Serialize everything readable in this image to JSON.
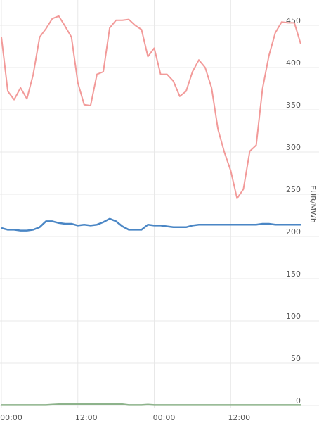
{
  "chart_data": {
    "type": "line",
    "ylabel": "EUR/MWh",
    "ylim": [
      0,
      480
    ],
    "yticks": [
      "0",
      "50",
      "100",
      "150",
      "200",
      "250",
      "300",
      "350",
      "400",
      "450"
    ],
    "xticks": [
      "00:00",
      "12:00",
      "00:00",
      "12:00"
    ],
    "grid": true,
    "series": [
      {
        "color": "#f29a99",
        "x": [
          0,
          1,
          2,
          3,
          4,
          5,
          6,
          7,
          8,
          9,
          10,
          11,
          12,
          13,
          14,
          15,
          16,
          17,
          18,
          19,
          20,
          21,
          22,
          23,
          24,
          25,
          26,
          27,
          28,
          29,
          30,
          31,
          32,
          33,
          34,
          35,
          36,
          37,
          38,
          39,
          40,
          41,
          42,
          43,
          44,
          45,
          46,
          47
        ],
        "values": [
          436,
          372,
          362,
          376,
          363,
          392,
          436,
          446,
          458,
          461,
          449,
          436,
          382,
          356,
          355,
          392,
          395,
          447,
          456,
          456,
          457,
          450,
          445,
          413,
          423,
          392,
          392,
          384,
          366,
          372,
          395,
          409,
          400,
          376,
          327,
          300,
          278,
          245,
          256,
          301,
          308,
          375,
          414,
          441,
          454,
          453,
          453,
          428
        ]
      },
      {
        "color": "#4a86c5",
        "x": [
          0,
          1,
          2,
          3,
          4,
          5,
          6,
          7,
          8,
          9,
          10,
          11,
          12,
          13,
          14,
          15,
          16,
          17,
          18,
          19,
          20,
          21,
          22,
          23,
          24,
          25,
          26,
          27,
          28,
          29,
          30,
          31,
          32,
          33,
          34,
          35,
          36,
          37,
          38,
          39,
          40,
          41,
          42,
          43,
          44,
          45,
          46,
          47
        ],
        "values": [
          210,
          208,
          208,
          207,
          207,
          208,
          211,
          218,
          218,
          216,
          215,
          215,
          213,
          214,
          213,
          214,
          217,
          221,
          218,
          212,
          208,
          208,
          208,
          214,
          213,
          213,
          212,
          211,
          211,
          211,
          213,
          214,
          214,
          214,
          214,
          214,
          214,
          214,
          214,
          214,
          214,
          215,
          215,
          214,
          214,
          214,
          214,
          214
        ]
      },
      {
        "color": "#8db38b",
        "x": [
          0,
          1,
          2,
          3,
          4,
          5,
          6,
          7,
          8,
          9,
          10,
          11,
          12,
          13,
          14,
          15,
          16,
          17,
          18,
          19,
          20,
          21,
          22,
          23,
          24,
          25,
          26,
          27,
          28,
          29,
          30,
          31,
          32,
          33,
          34,
          35,
          36,
          37,
          38,
          39,
          40,
          41,
          42,
          43,
          44,
          45,
          46,
          47
        ],
        "values": [
          0.5,
          0.5,
          0.5,
          0.5,
          0.5,
          0.5,
          0.5,
          0.5,
          1,
          1.5,
          1.5,
          1.5,
          1.5,
          1.5,
          1.5,
          1.5,
          1.5,
          1.5,
          1.5,
          1.5,
          0.5,
          0.5,
          0.5,
          1,
          0.5,
          0.5,
          0.5,
          0.5,
          0.5,
          0.5,
          0.5,
          0.5,
          0.5,
          0.5,
          0.5,
          0.5,
          0.5,
          0.5,
          0.5,
          0.5,
          0.5,
          0.5,
          0.5,
          0.5,
          0.5,
          0.5,
          0.5,
          0.5
        ]
      }
    ]
  }
}
